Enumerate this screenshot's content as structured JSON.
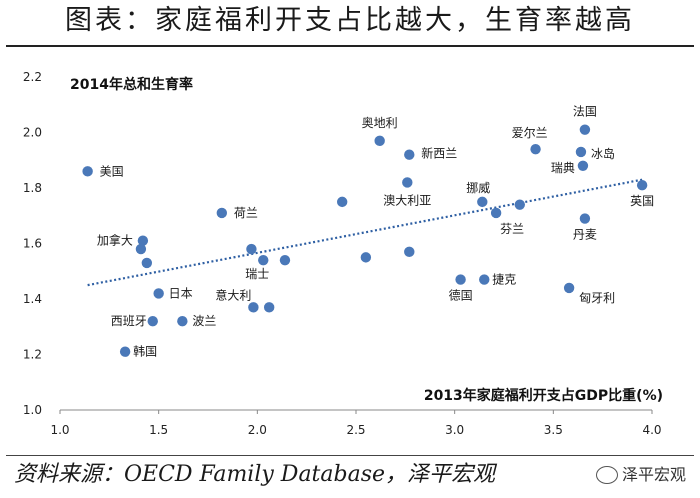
{
  "title": "图表：家庭福利开支占比越大，生育率越高",
  "source": "资料来源：OECD Family Database，泽平宏观",
  "watermark": "泽平宏观",
  "chart_data": {
    "type": "scatter",
    "ylabel": "2014年总和生育率",
    "xlabel": "2013年家庭福利开支占GDP比重(%)",
    "xlim": [
      1.0,
      4.0
    ],
    "ylim": [
      1.0,
      2.2
    ],
    "x_ticks": [
      "1.0",
      "1.5",
      "2.0",
      "2.5",
      "3.0",
      "3.5",
      "4.0"
    ],
    "y_ticks": [
      "1.0",
      "1.2",
      "1.4",
      "1.6",
      "1.8",
      "2.0",
      "2.2"
    ],
    "marker_color": "#4a78b8",
    "trend_color": "#2e5fa3",
    "trendline": {
      "x": [
        1.14,
        3.95
      ],
      "y": [
        1.45,
        1.83
      ]
    },
    "points": [
      {
        "x": 1.14,
        "y": 1.86,
        "label": "美国"
      },
      {
        "x": 1.42,
        "y": 1.61,
        "label": "加拿大"
      },
      {
        "x": 1.41,
        "y": 1.58,
        "label": ""
      },
      {
        "x": 1.44,
        "y": 1.53,
        "label": ""
      },
      {
        "x": 1.5,
        "y": 1.42,
        "label": "日本"
      },
      {
        "x": 1.47,
        "y": 1.32,
        "label": "西班牙"
      },
      {
        "x": 1.33,
        "y": 1.21,
        "label": "韩国"
      },
      {
        "x": 1.62,
        "y": 1.32,
        "label": "波兰"
      },
      {
        "x": 1.82,
        "y": 1.71,
        "label": "荷兰"
      },
      {
        "x": 1.97,
        "y": 1.58,
        "label": ""
      },
      {
        "x": 2.03,
        "y": 1.54,
        "label": "瑞士"
      },
      {
        "x": 2.14,
        "y": 1.54,
        "label": ""
      },
      {
        "x": 1.98,
        "y": 1.37,
        "label": "意大利"
      },
      {
        "x": 2.06,
        "y": 1.37,
        "label": ""
      },
      {
        "x": 2.43,
        "y": 1.75,
        "label": ""
      },
      {
        "x": 2.55,
        "y": 1.55,
        "label": ""
      },
      {
        "x": 2.62,
        "y": 1.97,
        "label": "奥地利"
      },
      {
        "x": 2.77,
        "y": 1.92,
        "label": "新西兰"
      },
      {
        "x": 2.76,
        "y": 1.82,
        "label": "澳大利亚"
      },
      {
        "x": 2.77,
        "y": 1.57,
        "label": ""
      },
      {
        "x": 3.03,
        "y": 1.47,
        "label": "德国"
      },
      {
        "x": 3.15,
        "y": 1.47,
        "label": "捷克"
      },
      {
        "x": 3.14,
        "y": 1.75,
        "label": "挪威"
      },
      {
        "x": 3.21,
        "y": 1.71,
        "label": "芬兰"
      },
      {
        "x": 3.33,
        "y": 1.74,
        "label": ""
      },
      {
        "x": 3.41,
        "y": 1.94,
        "label": "爱尔兰"
      },
      {
        "x": 3.58,
        "y": 1.44,
        "label": "匈牙利"
      },
      {
        "x": 3.64,
        "y": 1.93,
        "label": "冰岛"
      },
      {
        "x": 3.65,
        "y": 1.88,
        "label": "瑞典"
      },
      {
        "x": 3.66,
        "y": 2.01,
        "label": "法国"
      },
      {
        "x": 3.66,
        "y": 1.69,
        "label": "丹麦"
      },
      {
        "x": 3.95,
        "y": 1.81,
        "label": "英国"
      }
    ]
  }
}
